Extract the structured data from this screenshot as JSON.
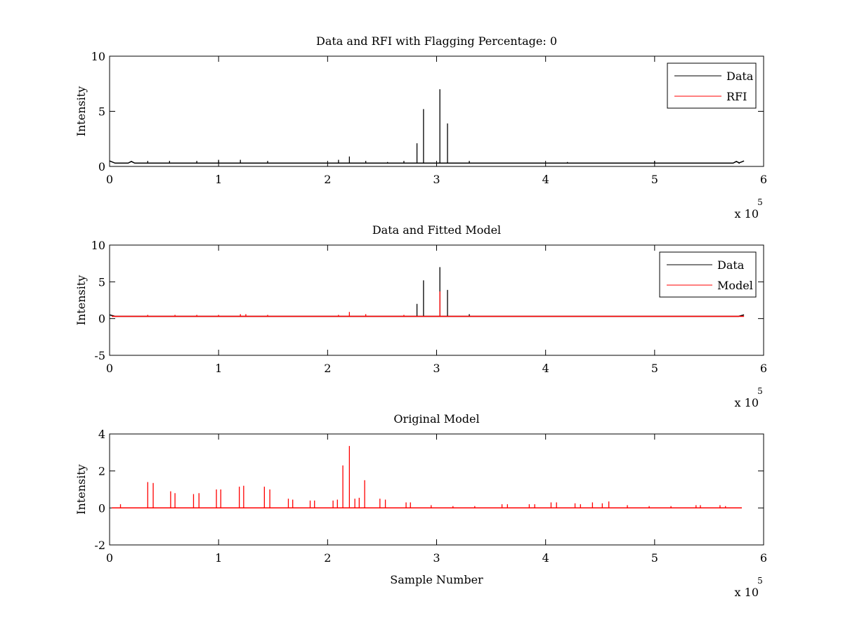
{
  "chart_data": [
    {
      "type": "line",
      "title": "Data and RFI with Flagging Percentage: 0",
      "xlabel": "",
      "ylabel": "Intensity",
      "xlim": [
        0,
        6
      ],
      "ylim": [
        0,
        10
      ],
      "xticks": [
        "0",
        "1",
        "2",
        "3",
        "4",
        "5",
        "6"
      ],
      "yticks": [
        "0",
        "5",
        "10"
      ],
      "x_multiplier": {
        "base": "x 10",
        "exponent": "5"
      },
      "legend": {
        "placement": "top-right"
      },
      "series": [
        {
          "name": "Data",
          "color": "#000000",
          "baseline": 0.3,
          "edge_bumps": [
            {
              "x": 0.0,
              "y": 0.5
            },
            {
              "x": 0.2,
              "y": 0.45
            },
            {
              "x": 5.75,
              "y": 0.45
            },
            {
              "x": 5.8,
              "y": 0.5
            }
          ],
          "spikes": [
            {
              "x": 0.35,
              "y": 0.5
            },
            {
              "x": 0.55,
              "y": 0.5
            },
            {
              "x": 0.8,
              "y": 0.5
            },
            {
              "x": 1.0,
              "y": 0.6
            },
            {
              "x": 1.2,
              "y": 0.6
            },
            {
              "x": 1.45,
              "y": 0.5
            },
            {
              "x": 2.1,
              "y": 0.6
            },
            {
              "x": 2.2,
              "y": 0.9
            },
            {
              "x": 2.35,
              "y": 0.5
            },
            {
              "x": 2.55,
              "y": 0.4
            },
            {
              "x": 2.7,
              "y": 0.5
            },
            {
              "x": 2.82,
              "y": 2.1
            },
            {
              "x": 2.88,
              "y": 5.2
            },
            {
              "x": 3.03,
              "y": 7.0
            },
            {
              "x": 3.1,
              "y": 3.9
            },
            {
              "x": 3.3,
              "y": 0.5
            },
            {
              "x": 4.2,
              "y": 0.4
            },
            {
              "x": 5.0,
              "y": 0.5
            }
          ]
        },
        {
          "name": "RFI",
          "color": "#ff0000",
          "baseline": null,
          "spikes": []
        }
      ]
    },
    {
      "type": "line",
      "title": "Data and Fitted Model",
      "xlabel": "",
      "ylabel": "Intensity",
      "xlim": [
        0,
        6
      ],
      "ylim": [
        -5,
        10
      ],
      "xticks": [
        "0",
        "1",
        "2",
        "3",
        "4",
        "5",
        "6"
      ],
      "yticks": [
        "-5",
        "0",
        "5",
        "10"
      ],
      "x_multiplier": {
        "base": "x 10",
        "exponent": "5"
      },
      "legend": {
        "placement": "top-right"
      },
      "series": [
        {
          "name": "Data",
          "color": "#000000",
          "baseline": 0.3,
          "edge_bumps": [
            {
              "x": 0.0,
              "y": 0.5
            },
            {
              "x": 5.8,
              "y": 0.5
            }
          ],
          "spikes": [
            {
              "x": 2.82,
              "y": 2.0
            },
            {
              "x": 2.88,
              "y": 5.2
            },
            {
              "x": 3.03,
              "y": 7.0
            },
            {
              "x": 3.1,
              "y": 3.9
            },
            {
              "x": 3.3,
              "y": 0.6
            }
          ]
        },
        {
          "name": "Model",
          "color": "#ff0000",
          "baseline": 0.3,
          "spikes": [
            {
              "x": 0.35,
              "y": 0.5
            },
            {
              "x": 0.6,
              "y": 0.5
            },
            {
              "x": 0.8,
              "y": 0.5
            },
            {
              "x": 1.0,
              "y": 0.5
            },
            {
              "x": 1.2,
              "y": 0.6
            },
            {
              "x": 1.25,
              "y": 0.6
            },
            {
              "x": 1.45,
              "y": 0.5
            },
            {
              "x": 2.1,
              "y": 0.5
            },
            {
              "x": 2.2,
              "y": 0.9
            },
            {
              "x": 2.35,
              "y": 0.6
            },
            {
              "x": 2.7,
              "y": 0.5
            },
            {
              "x": 3.03,
              "y": 3.7
            }
          ]
        }
      ]
    },
    {
      "type": "line",
      "title": "Original Model",
      "xlabel": "Sample Number",
      "ylabel": "Intensity",
      "xlim": [
        0,
        6
      ],
      "ylim": [
        -2,
        4
      ],
      "xticks": [
        "0",
        "1",
        "2",
        "3",
        "4",
        "5",
        "6"
      ],
      "yticks": [
        "-2",
        "0",
        "2",
        "4"
      ],
      "x_multiplier": {
        "base": "x 10",
        "exponent": "5"
      },
      "legend": null,
      "series": [
        {
          "name": "",
          "color": "#ff0000",
          "baseline": 0.0,
          "x_end": 5.8,
          "spikes": [
            {
              "x": 0.1,
              "y": 0.2
            },
            {
              "x": 0.35,
              "y": 1.4
            },
            {
              "x": 0.4,
              "y": 1.35
            },
            {
              "x": 0.56,
              "y": 0.9
            },
            {
              "x": 0.6,
              "y": 0.8
            },
            {
              "x": 0.77,
              "y": 0.75
            },
            {
              "x": 0.82,
              "y": 0.8
            },
            {
              "x": 0.98,
              "y": 1.0
            },
            {
              "x": 1.02,
              "y": 1.0
            },
            {
              "x": 1.19,
              "y": 1.15
            },
            {
              "x": 1.23,
              "y": 1.2
            },
            {
              "x": 1.42,
              "y": 1.15
            },
            {
              "x": 1.47,
              "y": 1.0
            },
            {
              "x": 1.64,
              "y": 0.5
            },
            {
              "x": 1.68,
              "y": 0.45
            },
            {
              "x": 1.84,
              "y": 0.4
            },
            {
              "x": 1.88,
              "y": 0.4
            },
            {
              "x": 2.05,
              "y": 0.4
            },
            {
              "x": 2.09,
              "y": 0.45
            },
            {
              "x": 2.14,
              "y": 2.3
            },
            {
              "x": 2.2,
              "y": 3.35
            },
            {
              "x": 2.25,
              "y": 0.5
            },
            {
              "x": 2.29,
              "y": 0.55
            },
            {
              "x": 2.34,
              "y": 1.5
            },
            {
              "x": 2.48,
              "y": 0.5
            },
            {
              "x": 2.53,
              "y": 0.45
            },
            {
              "x": 2.72,
              "y": 0.3
            },
            {
              "x": 2.76,
              "y": 0.3
            },
            {
              "x": 2.95,
              "y": 0.15
            },
            {
              "x": 3.15,
              "y": 0.1
            },
            {
              "x": 3.35,
              "y": 0.1
            },
            {
              "x": 3.6,
              "y": 0.2
            },
            {
              "x": 3.65,
              "y": 0.2
            },
            {
              "x": 3.85,
              "y": 0.2
            },
            {
              "x": 3.9,
              "y": 0.2
            },
            {
              "x": 4.05,
              "y": 0.3
            },
            {
              "x": 4.1,
              "y": 0.3
            },
            {
              "x": 4.27,
              "y": 0.25
            },
            {
              "x": 4.32,
              "y": 0.2
            },
            {
              "x": 4.43,
              "y": 0.3
            },
            {
              "x": 4.52,
              "y": 0.25
            },
            {
              "x": 4.58,
              "y": 0.35
            },
            {
              "x": 4.75,
              "y": 0.15
            },
            {
              "x": 4.95,
              "y": 0.1
            },
            {
              "x": 5.15,
              "y": 0.1
            },
            {
              "x": 5.38,
              "y": 0.15
            },
            {
              "x": 5.42,
              "y": 0.15
            },
            {
              "x": 5.6,
              "y": 0.15
            },
            {
              "x": 5.65,
              "y": 0.1
            }
          ]
        }
      ]
    }
  ]
}
